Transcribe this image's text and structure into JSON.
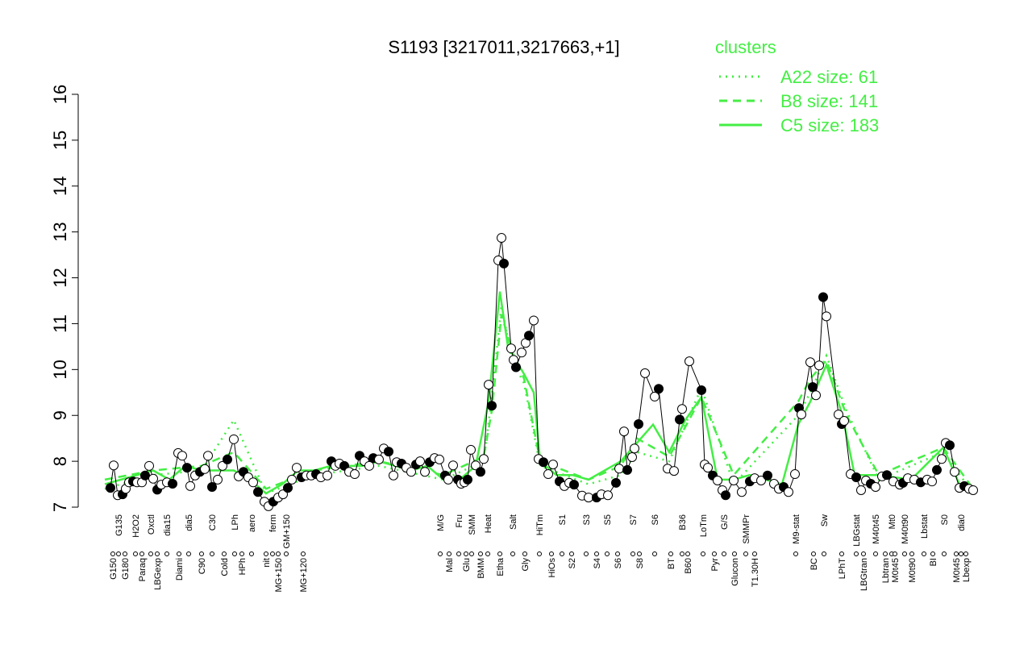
{
  "chart_data": {
    "type": "line",
    "title": "S1193 [3217011,3217663,+1]",
    "legend_title": "clusters",
    "legend_position": "top-right",
    "xlim": [
      0,
      1090
    ],
    "ylim": [
      6.64,
      16.36
    ],
    "yticks": [
      7,
      8,
      9,
      10,
      11,
      12,
      13,
      14,
      15,
      16
    ],
    "xticks": [
      {
        "value": 10,
        "label": "G150"
      },
      {
        "value": 17,
        "label": "G135"
      },
      {
        "value": 25,
        "label": "G180"
      },
      {
        "value": 38,
        "label": "H2O2"
      },
      {
        "value": 46,
        "label": "Paraq"
      },
      {
        "value": 57,
        "label": "Oxctl"
      },
      {
        "value": 65,
        "label": "LBGexp"
      },
      {
        "value": 77,
        "label": "dia15"
      },
      {
        "value": 92,
        "label": "Diami"
      },
      {
        "value": 104,
        "label": "dia5"
      },
      {
        "value": 120,
        "label": "C90"
      },
      {
        "value": 133,
        "label": "C30"
      },
      {
        "value": 148,
        "label": "Cold"
      },
      {
        "value": 161,
        "label": "LPh"
      },
      {
        "value": 170,
        "label": "HPh"
      },
      {
        "value": 182,
        "label": "aero"
      },
      {
        "value": 200,
        "label": "nit"
      },
      {
        "value": 208,
        "label": "ferm"
      },
      {
        "value": 215,
        "label": "MG+150"
      },
      {
        "value": 225,
        "label": "GM+150"
      },
      {
        "value": 246,
        "label": "MG+120"
      },
      {
        "value": 416,
        "label": "M/G"
      },
      {
        "value": 427,
        "label": "Mal"
      },
      {
        "value": 439,
        "label": "Fru"
      },
      {
        "value": 448,
        "label": "Glu"
      },
      {
        "value": 455,
        "label": "SMM"
      },
      {
        "value": 466,
        "label": "BMM"
      },
      {
        "value": 475,
        "label": "Heat"
      },
      {
        "value": 490,
        "label": "Etha"
      },
      {
        "value": 506,
        "label": "Salt"
      },
      {
        "value": 521,
        "label": "Gly"
      },
      {
        "value": 539,
        "label": "HiTm"
      },
      {
        "value": 554,
        "label": "HiOs"
      },
      {
        "value": 567,
        "label": "S1"
      },
      {
        "value": 579,
        "label": "S2"
      },
      {
        "value": 597,
        "label": "S3"
      },
      {
        "value": 610,
        "label": "S4"
      },
      {
        "value": 623,
        "label": "S5"
      },
      {
        "value": 636,
        "label": "S6"
      },
      {
        "value": 655,
        "label": "S7"
      },
      {
        "value": 663,
        "label": "S8"
      },
      {
        "value": 682,
        "label": "S6"
      },
      {
        "value": 702,
        "label": "BT"
      },
      {
        "value": 716,
        "label": "B36"
      },
      {
        "value": 723,
        "label": "B60"
      },
      {
        "value": 742,
        "label": "LoTm"
      },
      {
        "value": 756,
        "label": "Pyr"
      },
      {
        "value": 768,
        "label": "G/S"
      },
      {
        "value": 781,
        "label": "Glucon"
      },
      {
        "value": 795,
        "label": "SMMPr"
      },
      {
        "value": 806,
        "label": "T1.30H"
      },
      {
        "value": 857,
        "label": "M9-stat"
      },
      {
        "value": 879,
        "label": "BC"
      },
      {
        "value": 892,
        "label": "Sw"
      },
      {
        "value": 914,
        "label": "LPhT"
      },
      {
        "value": 932,
        "label": "LBGstat"
      },
      {
        "value": 941,
        "label": "LBGtran"
      },
      {
        "value": 956,
        "label": "M40t45"
      },
      {
        "value": 968,
        "label": "Lbtran"
      },
      {
        "value": 976,
        "label": "Mt0"
      },
      {
        "value": 980,
        "label": "M0t45"
      },
      {
        "value": 992,
        "label": "M40t90"
      },
      {
        "value": 1001,
        "label": "M0t90"
      },
      {
        "value": 1016,
        "label": "Lbstat"
      },
      {
        "value": 1027,
        "label": "BI"
      },
      {
        "value": 1041,
        "label": "S0"
      },
      {
        "value": 1056,
        "label": "M0t45"
      },
      {
        "value": 1062,
        "label": "dia0"
      },
      {
        "value": 1068,
        "label": "Lbexp"
      }
    ],
    "points": {
      "x": [
        7,
        11,
        16,
        22,
        26,
        30,
        35,
        40,
        46,
        50,
        55,
        60,
        65,
        70,
        77,
        84,
        91,
        96,
        102,
        106,
        112,
        118,
        124,
        128,
        133,
        140,
        146,
        152,
        160,
        166,
        172,
        178,
        184,
        190,
        198,
        203,
        209,
        215,
        221,
        227,
        232,
        238,
        244,
        250,
        256,
        262,
        268,
        276,
        281,
        286,
        291,
        297,
        303,
        310,
        316,
        322,
        328,
        333,
        340,
        346,
        352,
        358,
        362,
        368,
        374,
        380,
        386,
        391,
        397,
        403,
        409,
        415,
        422,
        426,
        432,
        438,
        442,
        446,
        450,
        454,
        460,
        466,
        470,
        476,
        480,
        488,
        492,
        495,
        504,
        507,
        510,
        517,
        522,
        526,
        532,
        538,
        544,
        550,
        556,
        564,
        570,
        576,
        582,
        592,
        600,
        610,
        616,
        624,
        634,
        638,
        644,
        648,
        654,
        657,
        662,
        670,
        682,
        687,
        698,
        706,
        713,
        716,
        725,
        740,
        744,
        748,
        754,
        760,
        766,
        770,
        780,
        790,
        800,
        806,
        814,
        822,
        830,
        836,
        842,
        848,
        856,
        861,
        864,
        875,
        878,
        882,
        886,
        891,
        895,
        910,
        914,
        917,
        925,
        932,
        938,
        944,
        950,
        956,
        964,
        970,
        978,
        986,
        990,
        996,
        1004,
        1012,
        1020,
        1026,
        1032,
        1038,
        1043,
        1048,
        1054,
        1060,
        1066,
        1072,
        1077
      ],
      "values": [
        7.42,
        7.91,
        7.26,
        7.28,
        7.4,
        7.54,
        7.56,
        7.54,
        7.54,
        7.69,
        7.9,
        7.62,
        7.38,
        7.49,
        7.54,
        7.51,
        8.18,
        8.12,
        7.86,
        7.46,
        7.69,
        7.77,
        7.83,
        8.12,
        7.44,
        7.6,
        7.9,
        8.04,
        8.48,
        7.67,
        7.77,
        7.65,
        7.54,
        7.33,
        7.12,
        7.02,
        7.12,
        7.21,
        7.28,
        7.42,
        7.6,
        7.86,
        7.65,
        7.69,
        7.69,
        7.72,
        7.65,
        7.69,
        8.0,
        7.9,
        7.95,
        7.9,
        7.77,
        7.72,
        8.12,
        8.0,
        7.9,
        8.07,
        8.04,
        8.28,
        8.21,
        7.69,
        7.98,
        7.95,
        7.86,
        7.77,
        7.93,
        8.0,
        7.77,
        7.98,
        8.07,
        8.04,
        7.69,
        7.6,
        7.91,
        7.6,
        7.51,
        7.54,
        7.6,
        8.25,
        7.91,
        7.77,
        8.05,
        9.67,
        9.21,
        12.38,
        12.87,
        12.31,
        10.46,
        10.21,
        10.05,
        10.37,
        10.58,
        10.74,
        11.07,
        8.05,
        7.98,
        7.72,
        7.93,
        7.56,
        7.46,
        7.53,
        7.49,
        7.25,
        7.21,
        7.21,
        7.28,
        7.26,
        7.53,
        7.84,
        8.65,
        7.81,
        8.09,
        8.28,
        8.81,
        9.92,
        9.41,
        9.58,
        7.84,
        7.79,
        8.91,
        9.14,
        10.18,
        9.55,
        7.93,
        7.86,
        7.69,
        7.58,
        7.37,
        7.26,
        7.58,
        7.33,
        7.56,
        7.63,
        7.58,
        7.69,
        7.51,
        7.4,
        7.44,
        7.33,
        7.72,
        9.16,
        9.02,
        10.16,
        9.62,
        9.44,
        10.09,
        11.58,
        11.16,
        9.02,
        8.81,
        8.88,
        7.72,
        7.65,
        7.37,
        7.58,
        7.51,
        7.44,
        7.67,
        7.7,
        7.56,
        7.49,
        7.53,
        7.63,
        7.6,
        7.54,
        7.6,
        7.56,
        7.81,
        8.05,
        8.4,
        8.35,
        7.77,
        7.42,
        7.46,
        7.4,
        7.37
      ],
      "color": "#000000"
    },
    "series": [
      {
        "name": "A22 size: 61",
        "color": "#44ee44",
        "dash": "dotted",
        "x": [
          0,
          60,
          120,
          160,
          200,
          260,
          340,
          420,
          470,
          480,
          492,
          505,
          520,
          540,
          600,
          640,
          660,
          700,
          740,
          780,
          860,
          875,
          895,
          920,
          960,
          1040,
          1077
        ],
        "values": [
          7.4,
          7.7,
          7.8,
          8.9,
          7.3,
          7.7,
          7.9,
          7.6,
          8.0,
          9.4,
          11.4,
          10.2,
          9.7,
          7.9,
          7.5,
          7.7,
          8.2,
          8.0,
          9.6,
          7.5,
          9.0,
          9.5,
          10.3,
          9.1,
          7.6,
          8.2,
          7.3
        ]
      },
      {
        "name": "B8 size: 141",
        "color": "#44ee44",
        "dash": "dashed",
        "x": [
          0,
          60,
          120,
          160,
          200,
          260,
          340,
          420,
          470,
          480,
          492,
          505,
          520,
          540,
          600,
          640,
          660,
          700,
          740,
          780,
          860,
          875,
          895,
          920,
          960,
          1040,
          1077
        ],
        "values": [
          7.6,
          7.8,
          7.9,
          8.2,
          7.4,
          7.8,
          8.0,
          7.7,
          8.1,
          9.1,
          11.2,
          10.4,
          9.8,
          8.0,
          7.6,
          7.9,
          8.5,
          8.1,
          9.4,
          7.7,
          9.3,
          9.8,
          10.2,
          9.0,
          7.7,
          8.3,
          7.4
        ]
      },
      {
        "name": "C5 size: 183",
        "color": "#44ee44",
        "dash": "solid",
        "x": [
          0,
          20,
          40,
          60,
          80,
          100,
          120,
          140,
          160,
          180,
          200,
          220,
          240,
          260,
          280,
          300,
          320,
          340,
          360,
          380,
          400,
          420,
          440,
          460,
          476,
          490,
          500,
          520,
          532,
          540,
          560,
          580,
          600,
          620,
          640,
          660,
          680,
          700,
          720,
          740,
          760,
          780,
          800,
          820,
          840,
          860,
          875,
          895,
          915,
          930,
          960,
          1000,
          1040,
          1060,
          1077
        ],
        "values": [
          7.5,
          7.6,
          7.7,
          7.8,
          7.6,
          7.9,
          7.8,
          7.8,
          7.8,
          7.6,
          7.3,
          7.5,
          7.8,
          7.8,
          7.9,
          7.9,
          7.9,
          8.0,
          7.9,
          7.8,
          7.9,
          7.6,
          7.6,
          7.9,
          9.3,
          11.7,
          10.5,
          9.9,
          9.5,
          8.0,
          7.7,
          7.7,
          7.6,
          7.8,
          8.0,
          8.4,
          8.8,
          8.2,
          8.9,
          9.4,
          7.6,
          7.6,
          7.7,
          7.6,
          7.5,
          8.8,
          9.3,
          10.1,
          9.0,
          7.7,
          7.7,
          7.6,
          8.3,
          7.5,
          7.4
        ]
      }
    ]
  }
}
